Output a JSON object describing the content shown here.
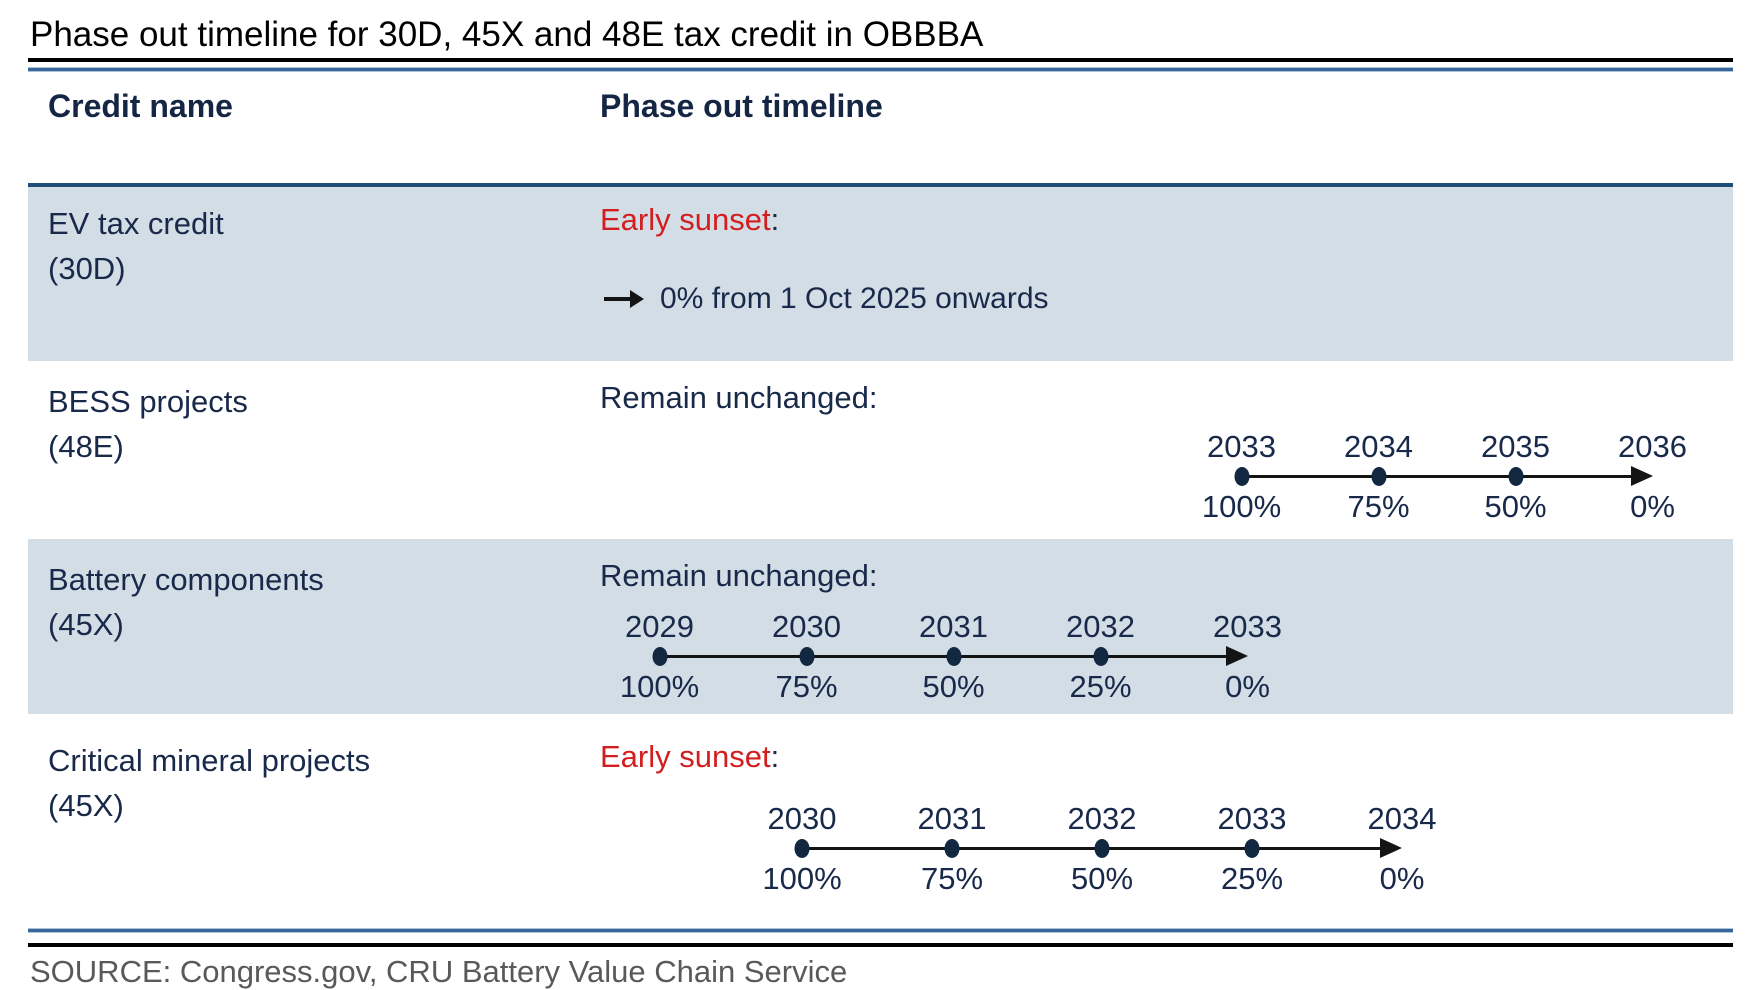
{
  "title": "Phase out timeline for 30D, 45X and 48E tax credit in OBBBA",
  "table": {
    "col1_header": "Credit name",
    "col2_header": "Phase out timeline"
  },
  "rows": [
    {
      "name": "EV tax credit",
      "code": "(30D)",
      "status": "Early sunset",
      "colon": ":",
      "status_red": true,
      "shaded": true,
      "note": "0% from 1 Oct 2025 onwards",
      "timeline_ref": null
    },
    {
      "name": "BESS projects",
      "code": "(48E)",
      "status": "Remain unchanged",
      "colon": ":",
      "status_red": false,
      "shaded": false,
      "timeline_ref": 0
    },
    {
      "name": "Battery components",
      "code": "(45X)",
      "status": "Remain unchanged",
      "colon": ":",
      "status_red": false,
      "shaded": true,
      "timeline_ref": 1
    },
    {
      "name": "Critical mineral projects",
      "code": "(45X)",
      "status": "Early sunset",
      "colon": ":",
      "status_red": true,
      "shaded": false,
      "timeline_ref": 2
    }
  ],
  "chart_data": [
    {
      "type": "line",
      "name": "BESS projects (48E) phase out",
      "x": [
        "2033",
        "2034",
        "2035",
        "2036"
      ],
      "values": [
        100,
        75,
        50,
        0
      ],
      "unit": "%",
      "marker": "dot on 2033-2035, arrowhead at 2036"
    },
    {
      "type": "line",
      "name": "Battery components (45X) phase out",
      "x": [
        "2029",
        "2030",
        "2031",
        "2032",
        "2033"
      ],
      "values": [
        100,
        75,
        50,
        25,
        0
      ],
      "unit": "%",
      "marker": "dot on 2029-2032, arrowhead at 2033"
    },
    {
      "type": "line",
      "name": "Critical mineral projects (45X) phase out",
      "x": [
        "2030",
        "2031",
        "2032",
        "2033",
        "2034"
      ],
      "values": [
        100,
        75,
        50,
        25,
        0
      ],
      "unit": "%",
      "marker": "dot on 2030-2033, arrowhead at 2034"
    }
  ],
  "source": "SOURCE: Congress.gov, CRU Battery Value Chain Service",
  "colors": {
    "row_shade": "#d3dde6",
    "navy_text": "#18294a",
    "early_sunset_red": "#d21e1e",
    "row_top_border": "#1f4e79",
    "rule_blue": "#38689a",
    "timeline_ink": "#141414",
    "dot_navy": "#122740",
    "source_gray": "#595959"
  }
}
